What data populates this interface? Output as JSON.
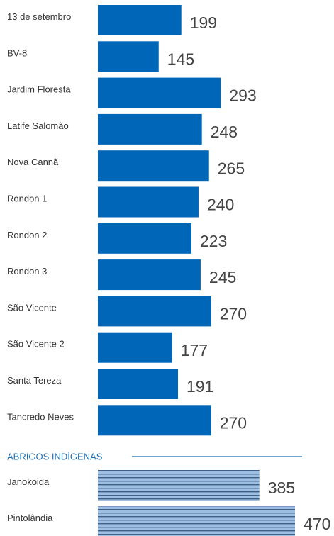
{
  "chart_data": [
    {
      "type": "bar",
      "orientation": "horizontal",
      "categories": [
        "13 de setembro",
        "BV-8",
        "Jardim Floresta",
        "Latife Salomão",
        "Nova Cannã",
        "Rondon 1",
        "Rondon 2",
        "Rondon 3",
        "São Vicente",
        "São Vicente 2",
        "Santa Tereza",
        "Tancredo Neves"
      ],
      "values": [
        199,
        145,
        293,
        248,
        265,
        240,
        223,
        245,
        270,
        177,
        191,
        270
      ],
      "color": "#0066b8"
    },
    {
      "type": "bar",
      "orientation": "horizontal",
      "title": "ABRIGOS INDÍGENAS",
      "categories": [
        "Janokoida",
        "Pintolândia"
      ],
      "values": [
        385,
        470
      ],
      "color": "#9dc0e2",
      "pattern": "striped"
    }
  ]
}
